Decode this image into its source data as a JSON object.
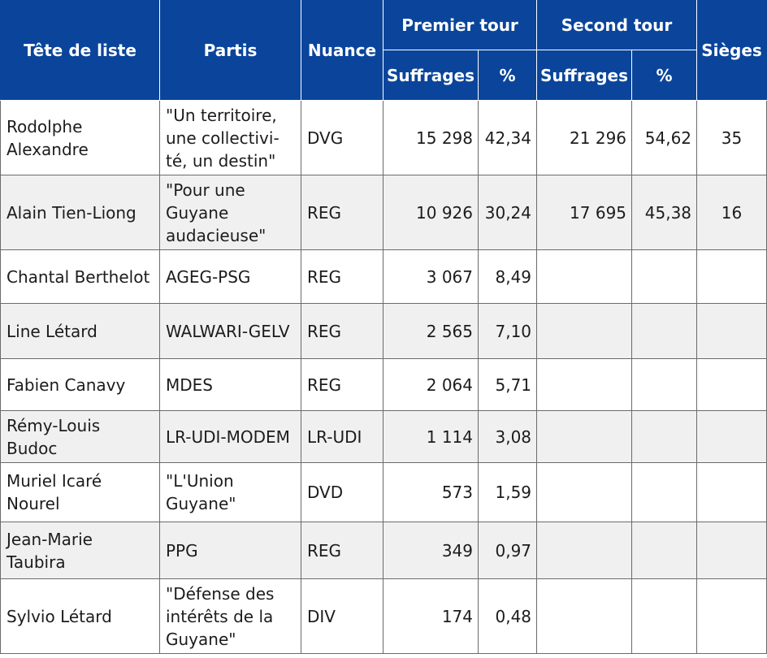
{
  "header": {
    "tete_de_liste": "Tête de liste",
    "partis": "Partis",
    "nuance": "Nuance",
    "premier_tour": "Premier tour",
    "second_tour": "Second tour",
    "sieges": "Sièges",
    "suffrages": "Suffrages",
    "pct": "%"
  },
  "rows": [
    {
      "tete": "Rodolphe Alexandre",
      "parti": "\"Un territoire, une collectivi-té, un destin\"",
      "nuance": "DVG",
      "t1_suffrages": "15 298",
      "t1_pct": "42,34",
      "t2_suffrages": "21 296",
      "t2_pct": "54,62",
      "sieges": "35"
    },
    {
      "tete": "Alain Tien-Liong",
      "parti": "\"Pour une Guyane audacieuse\"",
      "nuance": "REG",
      "t1_suffrages": "10 926",
      "t1_pct": "30,24",
      "t2_suffrages": "17 695",
      "t2_pct": "45,38",
      "sieges": "16"
    },
    {
      "tete": "Chantal Berthelot",
      "parti": "AGEG-PSG",
      "nuance": "REG",
      "t1_suffrages": "3 067",
      "t1_pct": "8,49",
      "t2_suffrages": "",
      "t2_pct": "",
      "sieges": ""
    },
    {
      "tete": "Line Létard",
      "parti": "WALWARI-GELV",
      "nuance": "REG",
      "t1_suffrages": "2 565",
      "t1_pct": "7,10",
      "t2_suffrages": "",
      "t2_pct": "",
      "sieges": ""
    },
    {
      "tete": "Fabien Canavy",
      "parti": "MDES",
      "nuance": "REG",
      "t1_suffrages": "2 064",
      "t1_pct": "5,71",
      "t2_suffrages": "",
      "t2_pct": "",
      "sieges": ""
    },
    {
      "tete": "Rémy-Louis Budoc",
      "parti": "LR-UDI-MODEM",
      "nuance": "LR-UDI",
      "t1_suffrages": "1 114",
      "t1_pct": "3,08",
      "t2_suffrages": "",
      "t2_pct": "",
      "sieges": ""
    },
    {
      "tete": "Muriel Icaré Nourel",
      "parti": "\"L'Union Guyane\"",
      "nuance": "DVD",
      "t1_suffrages": "573",
      "t1_pct": "1,59",
      "t2_suffrages": "",
      "t2_pct": "",
      "sieges": ""
    },
    {
      "tete": "Jean-Marie Taubira",
      "parti": "PPG",
      "nuance": "REG",
      "t1_suffrages": "349",
      "t1_pct": "0,97",
      "t2_suffrages": "",
      "t2_pct": "",
      "sieges": ""
    },
    {
      "tete": "Sylvio Létard",
      "parti": "\"Défense des intérêts de la Guyane\"",
      "nuance": "DIV",
      "t1_suffrages": "174",
      "t1_pct": "0,48",
      "t2_suffrages": "",
      "t2_pct": "",
      "sieges": ""
    }
  ],
  "colors": {
    "header_bg": "#0a459b",
    "header_text": "#ffffff",
    "stripe": "#f0f0f0",
    "border": "#6b6b6b"
  }
}
